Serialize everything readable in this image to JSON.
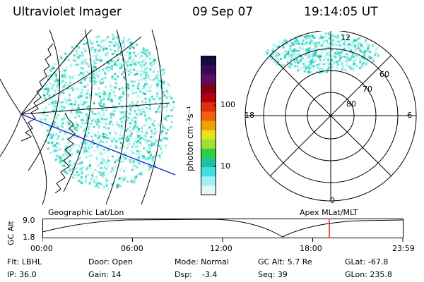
{
  "header": {
    "instrument": "Ultraviolet Imager",
    "date": "09 Sep 07",
    "time": "19:14:05 UT"
  },
  "colorbar": {
    "unit_label": "photon cm⁻²s⁻¹",
    "ticks": [
      "100",
      "10"
    ],
    "colors": [
      "#1a0a40",
      "#3a0a5a",
      "#5a1060",
      "#800018",
      "#b00010",
      "#e03010",
      "#f06010",
      "#f0a000",
      "#e8e020",
      "#a0e030",
      "#30d040",
      "#20c0a0",
      "#40e0e0",
      "#a0f0f0",
      "#e0f8f8"
    ]
  },
  "geo_map": {
    "label": "Geographic Lat/Lon"
  },
  "polar_map": {
    "label": "Apex MLat/MLT",
    "mlt_labels": [
      "12",
      "18",
      "6",
      "0"
    ],
    "lat_labels": [
      "60",
      "70",
      "80"
    ]
  },
  "altitude_plot": {
    "axis_label": "GC Alt",
    "y_ticks": [
      "9.0",
      "1.8"
    ],
    "x_ticks": [
      "00:00",
      "06:00",
      "12:00",
      "18:00",
      "23:59"
    ],
    "current_time_fraction": 0.796,
    "marker_color": "#e00000"
  },
  "info": {
    "flt": "Flt: LBHL",
    "door": "Door: Open",
    "mode": "Mode: Normal",
    "gc_alt": "GC Alt: 5.7 Re",
    "glat": "GLat: -67.8",
    "ip": "IP: 36.0",
    "gain": "Gain: 14",
    "dsp": "Dsp:    -3.4",
    "seq": "Seq: 39",
    "glon": "GLon: 235.8"
  }
}
